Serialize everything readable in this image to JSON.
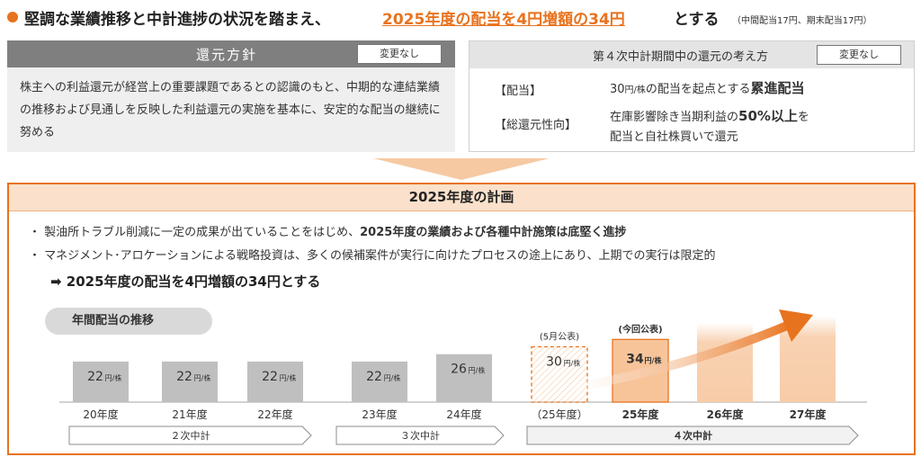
{
  "title": {
    "part1": "堅調な業績推移と中計進捗の状況を踏まえ、",
    "part2": "2025年度の配当を4円増額の34円",
    "part3": "とする",
    "note": "（中間配当17円、期末配当17円）"
  },
  "policy": {
    "header": "還元方針",
    "badge": "変更なし",
    "body": "株主への利益還元が経営上の重要課題であるとの認識のもと、中期的な連結業績の推移および見通しを反映した利益還元の実施を基本に、安定的な配当の継続に努める"
  },
  "mtp": {
    "header": "第４次中計期間中の還元の考え方",
    "badge": "変更なし",
    "dividend_key": "【配当】",
    "dividend_val_a": "30",
    "dividend_val_unit": "円/株",
    "dividend_val_b": "の配当を起点とする",
    "dividend_val_bold": "累進配当",
    "payout_key": "【総還元性向】",
    "payout_val_a": "在庫影響除き当期利益の",
    "payout_val_bold": "50%以上",
    "payout_val_b": "を",
    "payout_val_line2": "配当と自社株買いで還元"
  },
  "plan": {
    "header": "2025年度の計画",
    "bullet1_a": "・ 製油所トラブル削減に一定の成果が出ていることをはじめ、",
    "bullet1_bold": "2025年度の業績および各種中計施策は底堅く進捗",
    "bullet2": "・ マネジメント･アロケーションによる戦略投資は、多くの候補案件が実行に向けたプロセスの途上にあり、上期での実行は限定的",
    "arrow_text": "➡ 2025年度の配当を4円増額の34円とする",
    "chart_pill": "年間配当の推移"
  },
  "chart_data": {
    "type": "bar",
    "title": "年間配当の推移",
    "categories": [
      "20年度",
      "21年度",
      "22年度",
      "23年度",
      "24年度",
      "（25年度）",
      "25年度",
      "26年度",
      "27年度"
    ],
    "values": [
      22,
      22,
      22,
      22,
      26,
      30,
      34,
      null,
      null
    ],
    "value_labels": [
      "22",
      "22",
      "22",
      "22",
      "26",
      "30",
      "34",
      "",
      ""
    ],
    "unit": "円/株",
    "annotations": [
      "",
      "",
      "",
      "",
      "",
      "(5月公表)",
      "(今回公表)",
      "",
      ""
    ],
    "periods": [
      {
        "label": "２次中計"
      },
      {
        "label": "３次中計"
      },
      {
        "label": "４次中計"
      }
    ],
    "colors": {
      "gray": "#BFBFBF",
      "orange_dashed": "#E8731E",
      "orange_fill": "#F7C49A",
      "orange_faint": "#F9D5B5",
      "period_active": "#F2F2F2"
    }
  }
}
